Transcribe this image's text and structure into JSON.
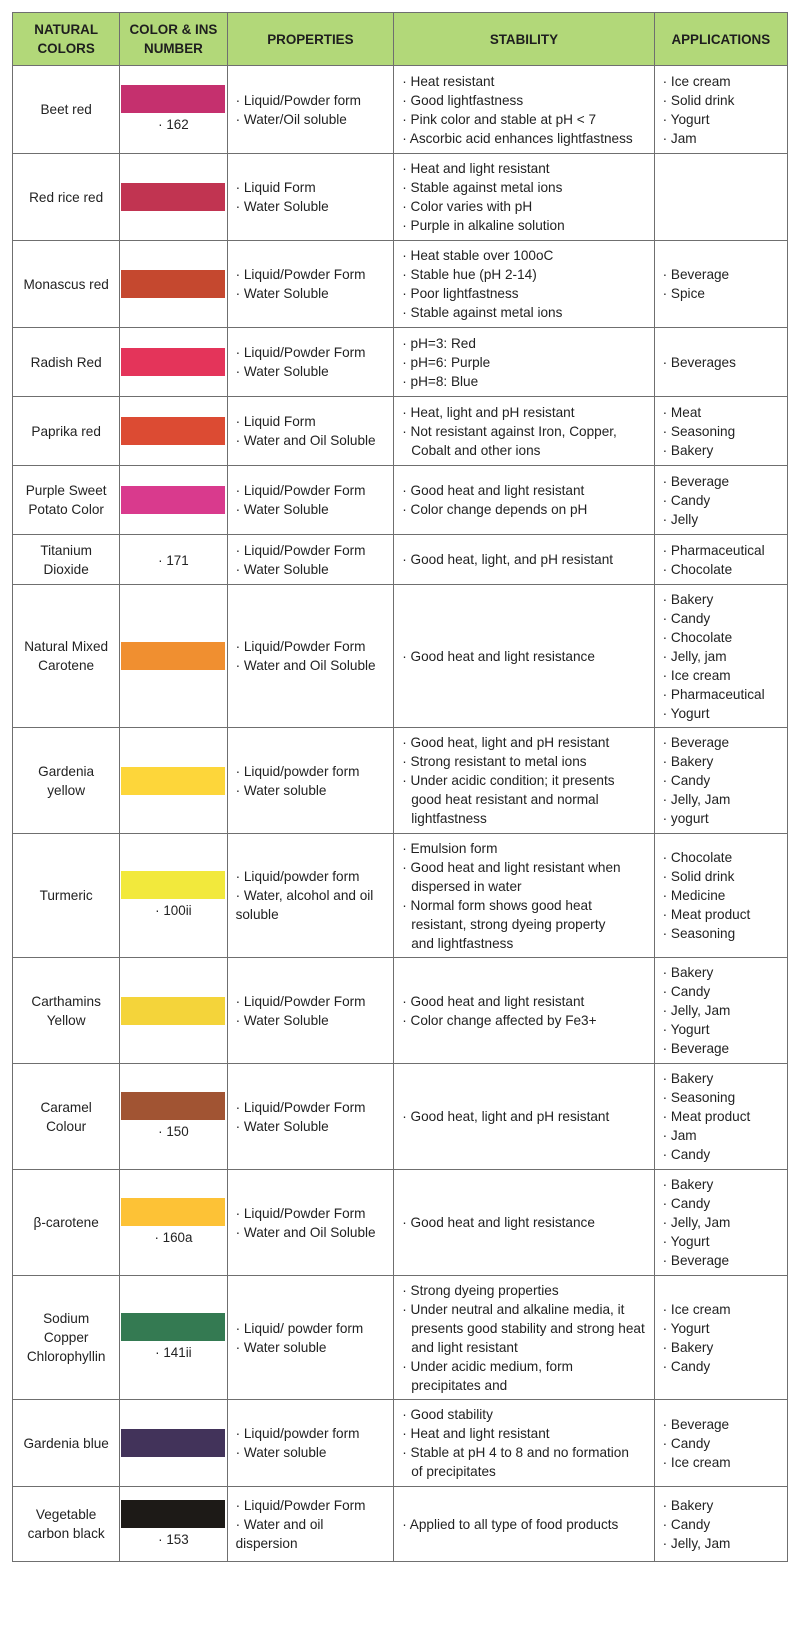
{
  "headers": {
    "natural_colors": "NATURAL COLORS",
    "color_ins": "COLOR & INS NUMBER",
    "properties": "PROPERTIES",
    "stability": "STABILITY",
    "applications": "APPLICATIONS"
  },
  "rows": [
    {
      "name": "Beet red",
      "swatch_color": "#c5306e",
      "ins": "· 162",
      "properties": [
        "· Liquid/Powder form",
        "· Water/Oil soluble"
      ],
      "stability": [
        "· Heat resistant",
        "· Good lightfastness",
        "· Pink color and stable at pH < 7",
        "· Ascorbic acid enhances lightfastness"
      ],
      "applications": [
        "· Ice cream",
        "· Solid drink",
        "· Yogurt",
        "· Jam"
      ]
    },
    {
      "name": "Red rice red",
      "swatch_color": "#c13451",
      "ins": "",
      "properties": [
        "· Liquid Form",
        "· Water Soluble"
      ],
      "stability": [
        "· Heat and light resistant",
        "· Stable against metal ions",
        "· Color varies with pH",
        "· Purple in alkaline solution"
      ],
      "applications": []
    },
    {
      "name": "Monascus red",
      "swatch_color": "#c5482f",
      "ins": "",
      "properties": [
        "· Liquid/Powder Form",
        "· Water Soluble"
      ],
      "stability": [
        "· Heat stable over 100oC",
        "· Stable hue (pH 2-14)",
        "· Poor lightfastness",
        "· Stable against metal ions"
      ],
      "applications": [
        "· Beverage",
        "· Spice"
      ]
    },
    {
      "name": "Radish Red",
      "swatch_color": "#e4345a",
      "ins": "",
      "properties": [
        "· Liquid/Powder Form",
        "· Water Soluble"
      ],
      "stability": [
        "· pH=3: Red",
        "· pH=6: Purple",
        "· pH=8: Blue"
      ],
      "applications": [
        "· Beverages"
      ]
    },
    {
      "name": "Paprika red",
      "swatch_color": "#dc4b33",
      "ins": "",
      "properties": [
        "· Liquid Form",
        "· Water and Oil Soluble"
      ],
      "stability": [
        "· Heat, light and pH resistant",
        "· Not resistant against Iron, Copper,",
        "Cobalt and other ions"
      ],
      "applications": [
        "· Meat",
        "· Seasoning",
        "· Bakery"
      ]
    },
    {
      "name": "Purple Sweet Potato Color",
      "swatch_color": "#d93a8d",
      "ins": "",
      "properties": [
        "· Liquid/Powder Form",
        "· Water Soluble"
      ],
      "stability": [
        "· Good heat and light resistant",
        "· Color change depends on pH"
      ],
      "applications": [
        "· Beverage",
        "· Candy",
        "· Jelly"
      ]
    },
    {
      "name": "Titanium Dioxide",
      "swatch_color": "",
      "ins": "· 171",
      "properties": [
        "· Liquid/Powder Form",
        "· Water Soluble"
      ],
      "stability": [
        "· Good heat, light, and pH resistant"
      ],
      "applications": [
        "· Pharmaceutical",
        "· Chocolate"
      ]
    },
    {
      "name": "Natural Mixed Carotene",
      "swatch_color": "#f08f30",
      "ins": "",
      "properties": [
        "· Liquid/Powder Form",
        "· Water and Oil Soluble"
      ],
      "stability": [
        "· Good heat and light resistance"
      ],
      "applications": [
        "· Bakery",
        "· Candy",
        "· Chocolate",
        "· Jelly, jam",
        "· Ice cream",
        "· Pharmaceutical",
        "· Yogurt"
      ]
    },
    {
      "name": "Gardenia yellow",
      "swatch_color": "#fdd63a",
      "ins": "",
      "properties": [
        "· Liquid/powder form",
        "· Water soluble"
      ],
      "stability": [
        "· Good heat, light and pH resistant",
        "· Strong resistant to metal ions",
        "· Under acidic condition; it presents",
        "good heat resistant and normal",
        "lightfastness"
      ],
      "applications": [
        "· Beverage",
        "· Bakery",
        "· Candy",
        "· Jelly, Jam",
        "· yogurt"
      ]
    },
    {
      "name": "Turmeric",
      "swatch_color": "#f2e93c",
      "ins": "· 100ii",
      "properties": [
        "· Liquid/powder form",
        "· Water, alcohol and oil",
        "soluble"
      ],
      "stability": [
        "· Emulsion form",
        "· Good heat and light resistant when",
        "dispersed in water",
        "· Normal form shows good heat",
        "resistant, strong dyeing property",
        "and lightfastness"
      ],
      "applications": [
        "· Chocolate",
        "· Solid drink",
        "· Medicine",
        "· Meat product",
        "· Seasoning"
      ]
    },
    {
      "name": "Carthamins Yellow",
      "swatch_color": "#f4d43a",
      "ins": "",
      "properties": [
        "· Liquid/Powder Form",
        "· Water Soluble"
      ],
      "stability": [
        "· Good heat and light resistant",
        "· Color change affected by Fe3+"
      ],
      "applications": [
        "· Bakery",
        "· Candy",
        "· Jelly, Jam",
        "· Yogurt",
        "· Beverage"
      ]
    },
    {
      "name": "Caramel Colour",
      "swatch_color": "#a15433",
      "ins": "· 150",
      "properties": [
        "· Liquid/Powder Form",
        "· Water Soluble"
      ],
      "stability": [
        "· Good heat, light and pH resistant"
      ],
      "applications": [
        "· Bakery",
        "· Seasoning",
        "· Meat product",
        "· Jam",
        "· Candy"
      ]
    },
    {
      "name": "β-carotene",
      "swatch_color": "#fdc236",
      "ins": "· 160a",
      "properties": [
        "· Liquid/Powder Form",
        "· Water and Oil Soluble"
      ],
      "stability": [
        "· Good heat and light resistance"
      ],
      "applications": [
        "· Bakery",
        "· Candy",
        "· Jelly, Jam",
        "· Yogurt",
        "· Beverage"
      ]
    },
    {
      "name": "Sodium Copper Chlorophyllin",
      "swatch_color": "#347a52",
      "ins": "· 141ii",
      "properties": [
        "· Liquid/ powder form",
        "· Water soluble"
      ],
      "stability": [
        "· Strong dyeing properties",
        "· Under neutral and alkaline media, it",
        "presents good stability and strong heat",
        "and light resistant",
        "· Under acidic medium, form",
        "precipitates and"
      ],
      "applications": [
        "· Ice cream",
        "· Yogurt",
        "· Bakery",
        "· Candy"
      ]
    },
    {
      "name": "Gardenia blue",
      "swatch_color": "#42335a",
      "ins": "",
      "properties": [
        "· Liquid/powder form",
        "· Water soluble"
      ],
      "stability": [
        "· Good stability",
        "· Heat and light resistant",
        "· Stable at pH 4 to 8 and no formation",
        "of precipitates"
      ],
      "applications": [
        "· Beverage",
        "· Candy",
        "· Ice cream"
      ]
    },
    {
      "name": "Vegetable carbon black",
      "swatch_color": "#1d1a17",
      "ins": "· 153",
      "properties": [
        "· Liquid/Powder Form",
        "· Water and oil",
        "dispersion"
      ],
      "stability": [
        "· Applied to all type of food products"
      ],
      "applications": [
        "· Bakery",
        "· Candy",
        "· Jelly, Jam"
      ]
    }
  ]
}
